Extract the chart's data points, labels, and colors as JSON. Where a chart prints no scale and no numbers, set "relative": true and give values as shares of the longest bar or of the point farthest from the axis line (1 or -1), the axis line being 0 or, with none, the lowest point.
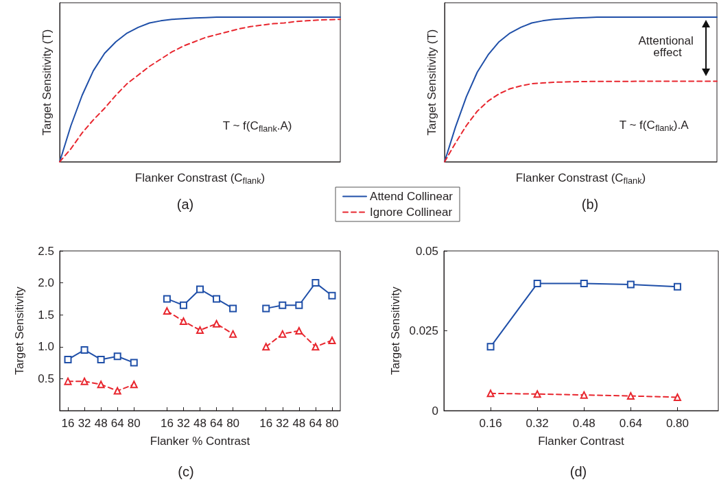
{
  "chart_data": [
    {
      "type": "line",
      "relative": true,
      "xlabel": "Flanker Constrast (C$_{flank}$)",
      "ylabel": "Target Sensitivity (T)",
      "legend": "bottom right",
      "categories": [
        null,
        null,
        null,
        null,
        null,
        null,
        null,
        null,
        null,
        null,
        null,
        null,
        null,
        null,
        null,
        null,
        null,
        null,
        null,
        null,
        null,
        null,
        null,
        null,
        null,
        null
      ],
      "series": [
        {
          "name": "Attend Collinear",
          "color": "#1f4fa8",
          "line_style": "solid",
          "marker": "none",
          "values": [
            0,
            0.25,
            0.46,
            0.63,
            0.75,
            0.83,
            0.89,
            0.93,
            0.96,
            0.975,
            0.985,
            0.99,
            0.995,
            0.997,
            1,
            1,
            1,
            1,
            1,
            1,
            1,
            1,
            1,
            1,
            1,
            1
          ]
        },
        {
          "name": "Ignore Collinear",
          "color": "#e8262e",
          "line_style": "dashed",
          "marker": "none",
          "values": [
            0,
            0.09,
            0.2,
            0.29,
            0.37,
            0.46,
            0.54,
            0.6,
            0.66,
            0.71,
            0.76,
            0.8,
            0.83,
            0.86,
            0.88,
            0.9,
            0.92,
            0.935,
            0.945,
            0.955,
            0.96,
            0.97,
            0.975,
            0.98,
            0.983,
            0.985
          ]
        }
      ],
      "annotations": [
        "T ~ f(C$_{flank}$.A)",
        "(a)"
      ]
    },
    {
      "type": "line",
      "relative": true,
      "xlabel": "Flanker Constrast (C$_{flank}$)",
      "ylabel": "Target Sensitivity (T)",
      "categories": [
        null,
        null,
        null,
        null,
        null,
        null,
        null,
        null,
        null,
        null,
        null,
        null,
        null,
        null,
        null,
        null,
        null,
        null,
        null,
        null,
        null,
        null,
        null,
        null,
        null,
        null
      ],
      "series": [
        {
          "color": "#1f4fa8",
          "line_style": "solid",
          "marker": "none",
          "values": [
            0,
            0.24,
            0.45,
            0.62,
            0.74,
            0.83,
            0.89,
            0.93,
            0.96,
            0.975,
            0.985,
            0.99,
            0.995,
            0.997,
            1,
            1,
            1,
            1,
            1,
            1,
            1,
            1,
            1,
            1,
            1,
            1
          ]
        },
        {
          "color": "#e8262e",
          "line_style": "dashed",
          "marker": "none",
          "values": [
            0,
            0.13,
            0.25,
            0.35,
            0.42,
            0.47,
            0.505,
            0.525,
            0.54,
            0.545,
            0.55,
            0.552,
            0.554,
            0.555,
            0.556,
            0.556,
            0.556,
            0.556,
            0.557,
            0.557,
            0.557,
            0.557,
            0.557,
            0.557,
            0.557,
            0.557
          ]
        }
      ],
      "annotations": [
        "Attentional effect",
        "T ~ f(C$_{flank}$).A",
        "(b)"
      ]
    },
    {
      "type": "line",
      "xlabel": "Flanker % Contrast",
      "ylabel": "Target Sensitivity",
      "categories": [
        "16",
        "32",
        "48",
        "64",
        "80",
        null,
        "16",
        "32",
        "48",
        "64",
        "80",
        null,
        "16",
        "32",
        "48",
        "64",
        "80"
      ],
      "ylim": [
        0,
        2.5
      ],
      "yticks": [
        0.5,
        {
          "value": 1,
          "label": "1.0"
        },
        1.5,
        {
          "value": 2,
          "label": "2.0"
        },
        2.5
      ],
      "series": [
        {
          "color": "#1f4fa8",
          "line_style": "solid",
          "marker": "square",
          "values": [
            0.8,
            0.95,
            0.8,
            0.85,
            0.75,
            null,
            1.75,
            1.65,
            1.9,
            1.75,
            1.6,
            null,
            1.6,
            1.65,
            1.65,
            2.0,
            1.8
          ]
        },
        {
          "color": "#e8262e",
          "line_style": "dashed",
          "marker": "triangle",
          "values": [
            0.46,
            0.46,
            0.41,
            0.31,
            0.41,
            null,
            1.56,
            1.4,
            1.26,
            1.36,
            1.2,
            null,
            1.0,
            1.2,
            1.25,
            1.0,
            1.1
          ]
        }
      ],
      "annotations": [
        "(c)"
      ]
    },
    {
      "type": "line",
      "xlabel": "Flanker Contrast",
      "ylabel": "Target Sensitivity",
      "x": [
        0.16,
        0.32,
        0.48,
        0.64,
        0.8
      ],
      "xlim": [
        0,
        0.94
      ],
      "xticks": [
        0.16,
        0.32,
        0.48,
        0.64,
        {
          "value": 0.8,
          "label": "0.80"
        }
      ],
      "ylim": [
        0,
        0.05
      ],
      "yticks": [
        0,
        0.025,
        0.05
      ],
      "series": [
        {
          "color": "#1f4fa8",
          "line_style": "solid",
          "marker": "square",
          "values": [
            0.02,
            0.0398,
            0.0398,
            0.0395,
            0.0388
          ]
        },
        {
          "color": "#e8262e",
          "line_style": "dashed",
          "marker": "triangle",
          "values": [
            0.0054,
            0.0052,
            0.0049,
            0.0046,
            0.0042
          ]
        }
      ],
      "annotations": [
        "(d)"
      ]
    }
  ]
}
